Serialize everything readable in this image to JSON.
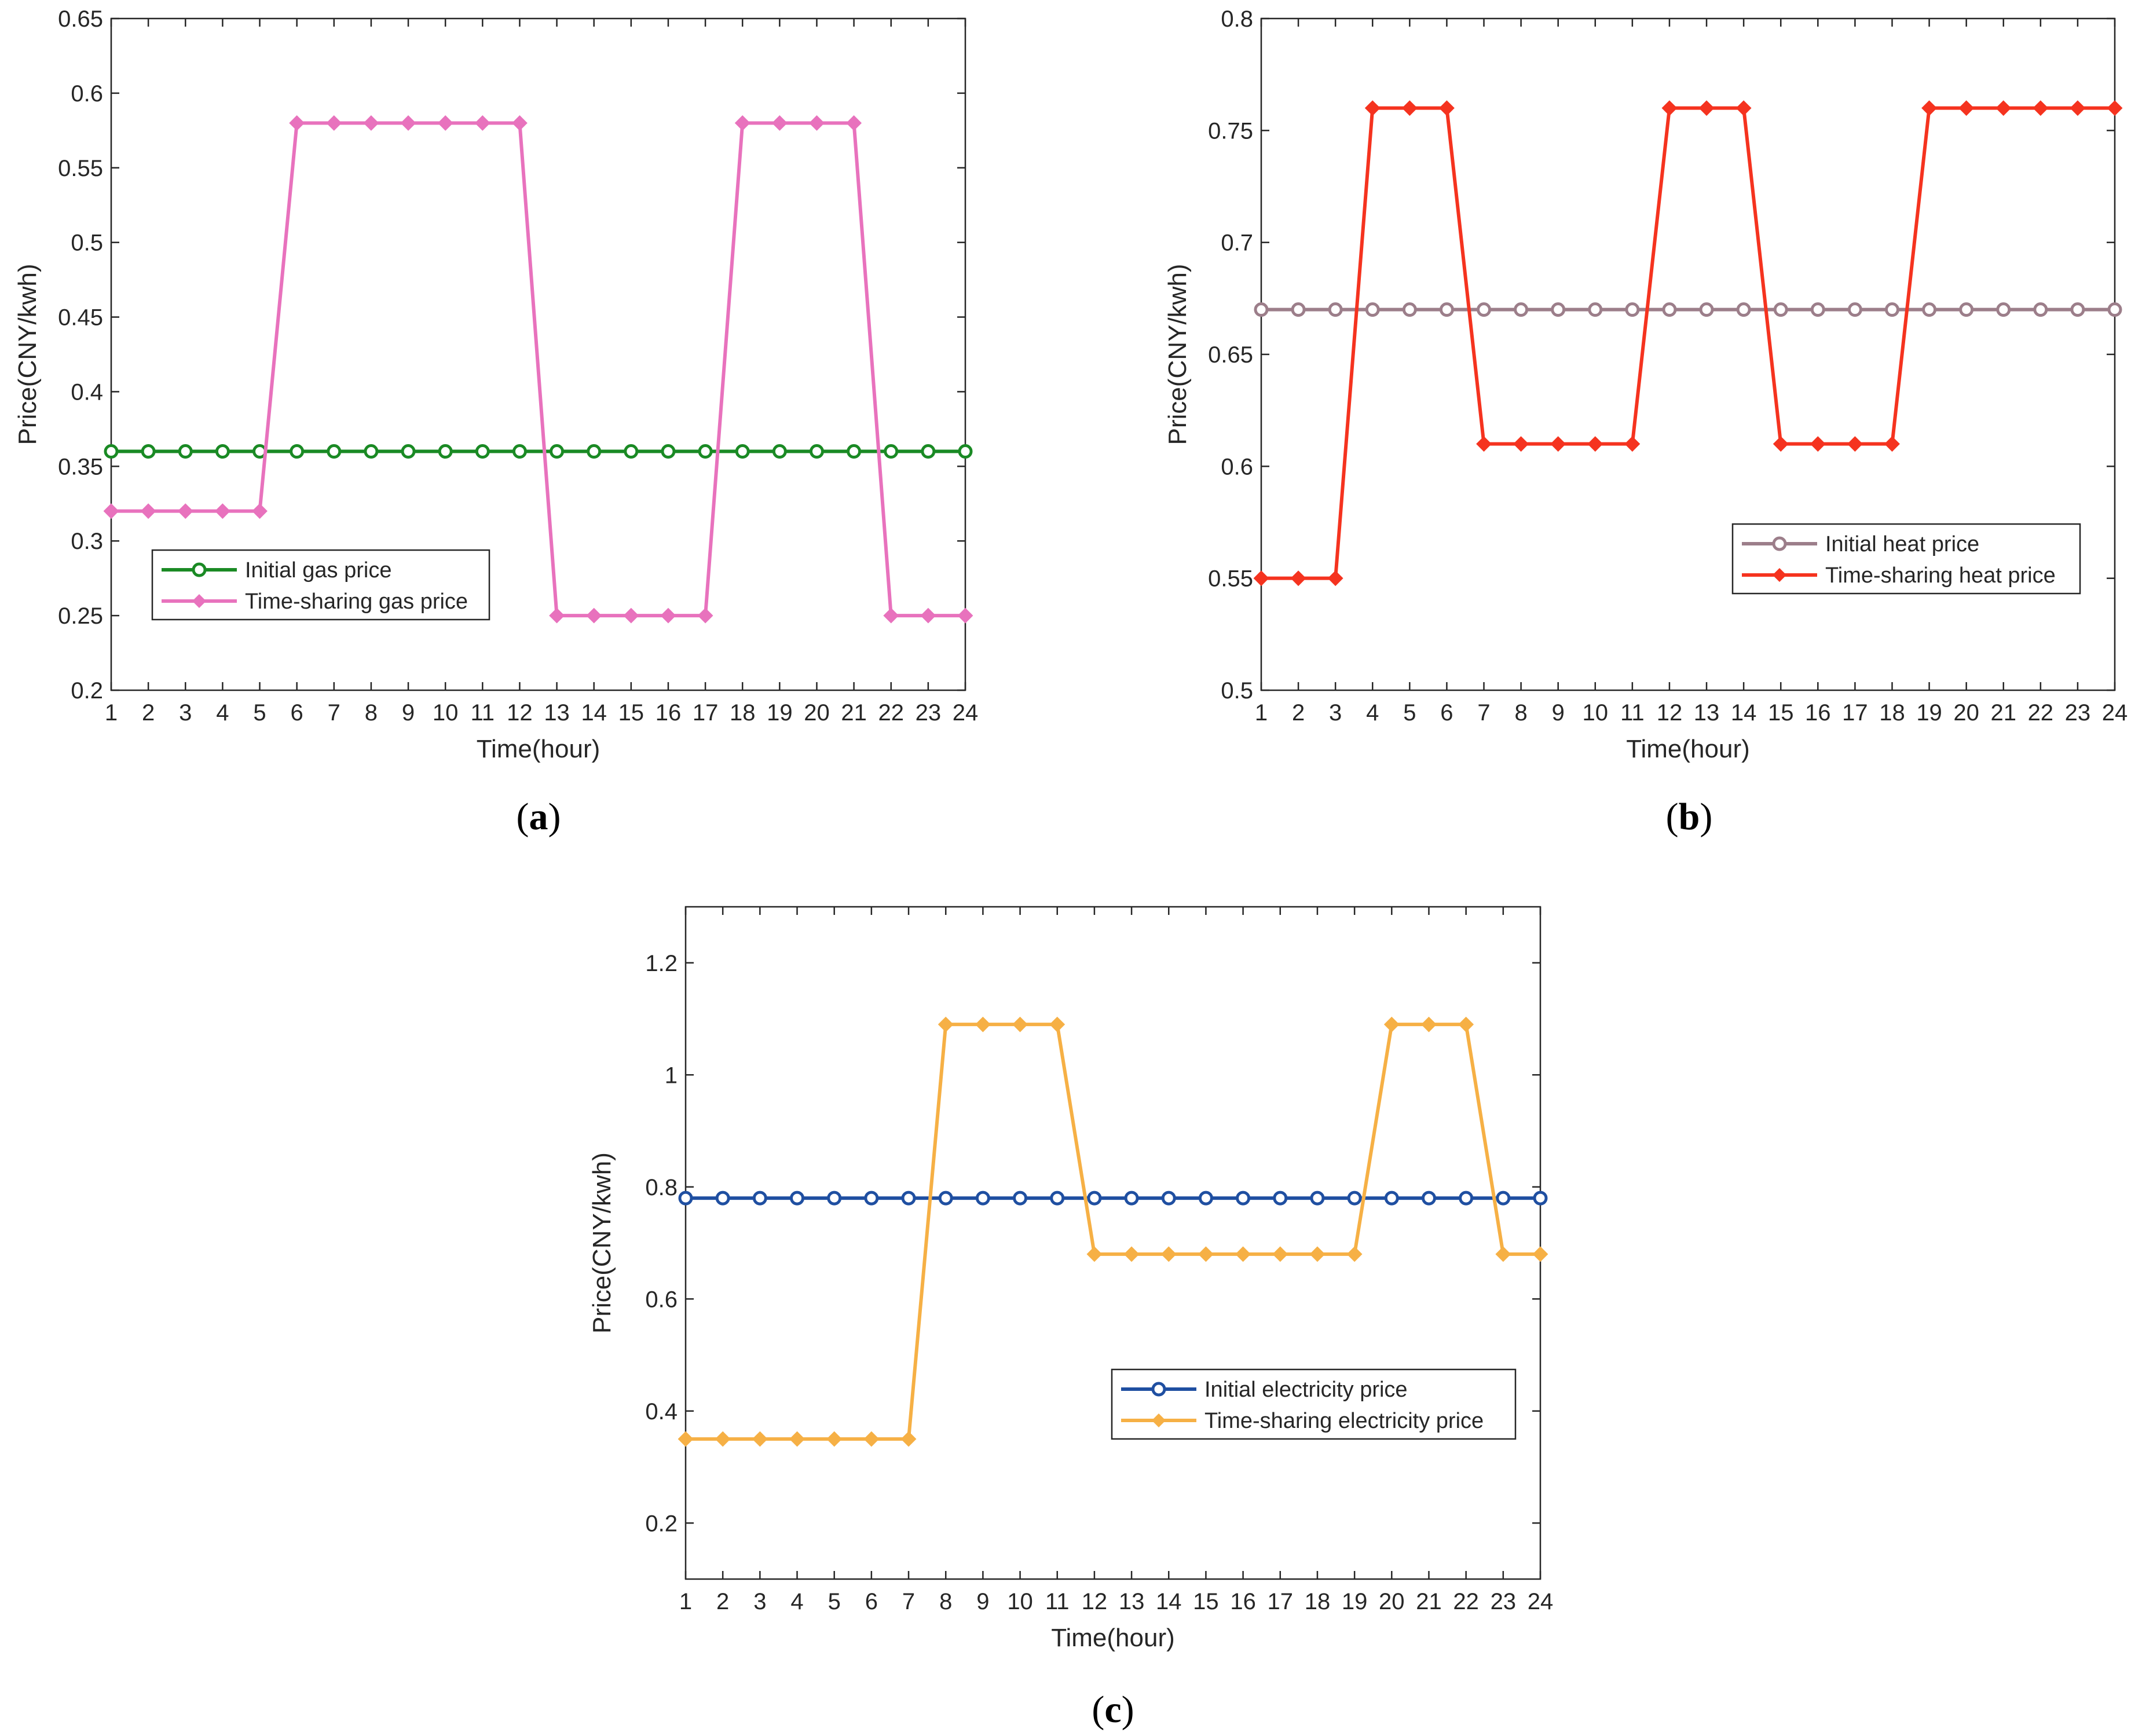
{
  "chart_data": [
    {
      "type": "line",
      "panel": "a",
      "caption_letter": "a",
      "xlabel": "Time(hour)",
      "ylabel": "Price(CNY/kwh)",
      "xlim": [
        1,
        24
      ],
      "ylim": [
        0.2,
        0.65
      ],
      "x": [
        1,
        2,
        3,
        4,
        5,
        6,
        7,
        8,
        9,
        10,
        11,
        12,
        13,
        14,
        15,
        16,
        17,
        18,
        19,
        20,
        21,
        22,
        23,
        24
      ],
      "x_tick_labels": [
        "1",
        "2",
        "3",
        "4",
        "5",
        "6",
        "7",
        "8",
        "9",
        "10",
        "11",
        "12",
        "13",
        "14",
        "15",
        "16",
        "17",
        "18",
        "19",
        "20",
        "21",
        "22",
        "23",
        "24"
      ],
      "y_ticks": [
        0.2,
        0.25,
        0.3,
        0.35,
        0.4,
        0.45,
        0.5,
        0.55,
        0.6,
        0.65
      ],
      "y_tick_labels": [
        "0.2",
        "0.25",
        "0.3",
        "0.35",
        "0.4",
        "0.45",
        "0.5",
        "0.55",
        "0.6",
        "0.65"
      ],
      "legend_position": "lower-left",
      "series": [
        {
          "name": "Initial gas price",
          "color": "#1a8a24",
          "marker": "circle",
          "values": [
            0.36,
            0.36,
            0.36,
            0.36,
            0.36,
            0.36,
            0.36,
            0.36,
            0.36,
            0.36,
            0.36,
            0.36,
            0.36,
            0.36,
            0.36,
            0.36,
            0.36,
            0.36,
            0.36,
            0.36,
            0.36,
            0.36,
            0.36,
            0.36
          ]
        },
        {
          "name": "Time-sharing gas price",
          "color": "#e872bd",
          "marker": "diamond",
          "values": [
            0.32,
            0.32,
            0.32,
            0.32,
            0.32,
            0.58,
            0.58,
            0.58,
            0.58,
            0.58,
            0.58,
            0.58,
            0.25,
            0.25,
            0.25,
            0.25,
            0.25,
            0.58,
            0.58,
            0.58,
            0.58,
            0.25,
            0.25,
            0.25
          ]
        }
      ]
    },
    {
      "type": "line",
      "panel": "b",
      "caption_letter": "b",
      "xlabel": "Time(hour)",
      "ylabel": "Price(CNY/kwh)",
      "xlim": [
        1,
        24
      ],
      "ylim": [
        0.5,
        0.8
      ],
      "x": [
        1,
        2,
        3,
        4,
        5,
        6,
        7,
        8,
        9,
        10,
        11,
        12,
        13,
        14,
        15,
        16,
        17,
        18,
        19,
        20,
        21,
        22,
        23,
        24
      ],
      "x_tick_labels": [
        "1",
        "2",
        "3",
        "4",
        "5",
        "6",
        "7",
        "8",
        "9",
        "10",
        "11",
        "12",
        "13",
        "14",
        "15",
        "16",
        "17",
        "18",
        "19",
        "20",
        "21",
        "22",
        "23",
        "24"
      ],
      "y_ticks": [
        0.5,
        0.55,
        0.6,
        0.65,
        0.7,
        0.75,
        0.8
      ],
      "y_tick_labels": [
        "0.5",
        "0.55",
        "0.6",
        "0.65",
        "0.7",
        "0.75",
        "0.8"
      ],
      "legend_position": "lower-right",
      "series": [
        {
          "name": "Initial heat price",
          "color": "#9c7e8a",
          "marker": "circle",
          "values": [
            0.67,
            0.67,
            0.67,
            0.67,
            0.67,
            0.67,
            0.67,
            0.67,
            0.67,
            0.67,
            0.67,
            0.67,
            0.67,
            0.67,
            0.67,
            0.67,
            0.67,
            0.67,
            0.67,
            0.67,
            0.67,
            0.67,
            0.67,
            0.67
          ]
        },
        {
          "name": "Time-sharing heat price",
          "color": "#f5331f",
          "marker": "diamond",
          "values": [
            0.55,
            0.55,
            0.55,
            0.76,
            0.76,
            0.76,
            0.61,
            0.61,
            0.61,
            0.61,
            0.61,
            0.76,
            0.76,
            0.76,
            0.61,
            0.61,
            0.61,
            0.61,
            0.76,
            0.76,
            0.76,
            0.76,
            0.76,
            0.76
          ]
        }
      ]
    },
    {
      "type": "line",
      "panel": "c",
      "caption_letter": "c",
      "xlabel": "Time(hour)",
      "ylabel": "Price(CNY/kwh)",
      "xlim": [
        1,
        24
      ],
      "ylim": [
        0.1,
        1.3
      ],
      "x": [
        1,
        2,
        3,
        4,
        5,
        6,
        7,
        8,
        9,
        10,
        11,
        12,
        13,
        14,
        15,
        16,
        17,
        18,
        19,
        20,
        21,
        22,
        23,
        24
      ],
      "x_tick_labels": [
        "1",
        "2",
        "3",
        "4",
        "5",
        "6",
        "7",
        "8",
        "9",
        "10",
        "11",
        "12",
        "13",
        "14",
        "15",
        "16",
        "17",
        "18",
        "19",
        "20",
        "21",
        "22",
        "23",
        "24"
      ],
      "y_ticks": [
        0.2,
        0.4,
        0.6,
        0.8,
        1.0,
        1.2
      ],
      "y_tick_labels": [
        "0.2",
        "0.4",
        "0.6",
        "0.8",
        "1",
        "1.2"
      ],
      "legend_position": "lower-right",
      "series": [
        {
          "name": "Initial electricity price",
          "color": "#1f4fa1",
          "marker": "circle",
          "values": [
            0.78,
            0.78,
            0.78,
            0.78,
            0.78,
            0.78,
            0.78,
            0.78,
            0.78,
            0.78,
            0.78,
            0.78,
            0.78,
            0.78,
            0.78,
            0.78,
            0.78,
            0.78,
            0.78,
            0.78,
            0.78,
            0.78,
            0.78,
            0.78
          ]
        },
        {
          "name": "Time-sharing electricity price",
          "color": "#f6b045",
          "marker": "diamond",
          "values": [
            0.35,
            0.35,
            0.35,
            0.35,
            0.35,
            0.35,
            0.35,
            1.09,
            1.09,
            1.09,
            1.09,
            0.68,
            0.68,
            0.68,
            0.68,
            0.68,
            0.68,
            0.68,
            0.68,
            1.09,
            1.09,
            1.09,
            0.68,
            0.68
          ]
        }
      ]
    }
  ]
}
